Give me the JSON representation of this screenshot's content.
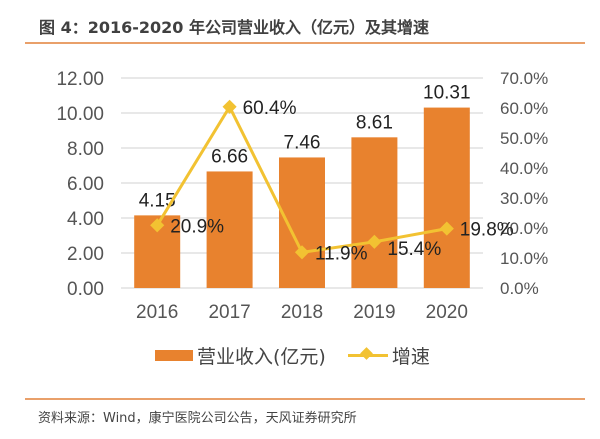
{
  "title": "图 4：2016-2020 年公司营业收入（亿元）及其增速",
  "source": "资料来源：Wind，康宁医院公司公告，天风证券研究所",
  "colors": {
    "bar": "#e8822e",
    "line": "#f2c232",
    "rule": "#e9a06a",
    "grid": "#d9d9d9"
  },
  "chart_data": {
    "type": "bar+line",
    "categories": [
      "2016",
      "2017",
      "2018",
      "2019",
      "2020"
    ],
    "series": [
      {
        "name": "营业收入(亿元)",
        "type": "bar",
        "axis": "left",
        "values": [
          4.15,
          6.66,
          7.46,
          8.61,
          10.31
        ],
        "labels": [
          "4.15",
          "6.66",
          "7.46",
          "8.61",
          "10.31"
        ]
      },
      {
        "name": "增速",
        "type": "line",
        "axis": "right",
        "values": [
          20.9,
          60.4,
          11.9,
          15.4,
          19.8
        ],
        "labels": [
          "20.9%",
          "60.4%",
          "11.9%",
          "15.4%",
          "19.8%"
        ]
      }
    ],
    "left_axis": {
      "ylim": [
        0,
        12
      ],
      "ticks": [
        "0.00",
        "2.00",
        "4.00",
        "6.00",
        "8.00",
        "10.00",
        "12.00"
      ]
    },
    "right_axis": {
      "ylim": [
        0,
        70
      ],
      "ticks": [
        "0.0%",
        "10.0%",
        "20.0%",
        "30.0%",
        "40.0%",
        "50.0%",
        "60.0%",
        "70.0%"
      ]
    },
    "grid": true,
    "legend": "bottom",
    "legend_entries": [
      "营业收入(亿元)",
      "增速"
    ]
  }
}
